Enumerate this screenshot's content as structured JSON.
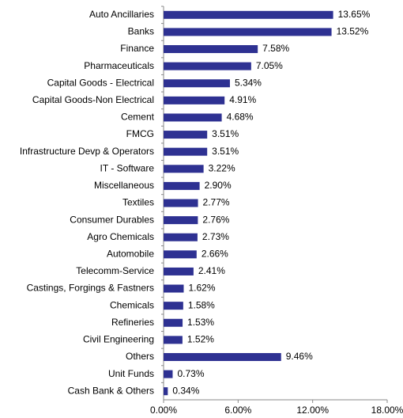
{
  "chart_data": {
    "type": "barh",
    "categories": [
      "Auto Ancillaries",
      "Banks",
      "Finance",
      "Pharmaceuticals",
      "Capital Goods - Electrical",
      "Capital Goods-Non Electrical",
      "Cement",
      "FMCG",
      "Infrastructure Devp & Operators",
      "IT - Software",
      "Miscellaneous",
      "Textiles",
      "Consumer Durables",
      "Agro Chemicals",
      "Automobile",
      "Telecomm-Service",
      "Castings, Forgings & Fastners",
      "Chemicals",
      "Refineries",
      "Civil Engineering",
      "Others",
      "Unit Funds",
      "Cash Bank & Others"
    ],
    "values": [
      13.65,
      13.52,
      7.58,
      7.05,
      5.34,
      4.91,
      4.68,
      3.51,
      3.51,
      3.22,
      2.9,
      2.77,
      2.76,
      2.73,
      2.66,
      2.41,
      1.62,
      1.58,
      1.53,
      1.52,
      9.46,
      0.73,
      0.34
    ],
    "value_labels": [
      "13.65%",
      "13.52%",
      "7.58%",
      "7.05%",
      "5.34%",
      "4.91%",
      "4.68%",
      "3.51%",
      "3.51%",
      "3.22%",
      "2.90%",
      "2.77%",
      "2.76%",
      "2.73%",
      "2.66%",
      "2.41%",
      "1.62%",
      "1.58%",
      "1.53%",
      "1.52%",
      "9.46%",
      "0.73%",
      "0.34%"
    ],
    "color": "#2e3192",
    "xlim": [
      0,
      18
    ],
    "xticks": [
      {
        "value": 0,
        "label": "0.00%"
      },
      {
        "value": 6,
        "label": "6.00%"
      },
      {
        "value": 12,
        "label": "12.00%"
      },
      {
        "value": 18,
        "label": "18.00%"
      }
    ]
  }
}
